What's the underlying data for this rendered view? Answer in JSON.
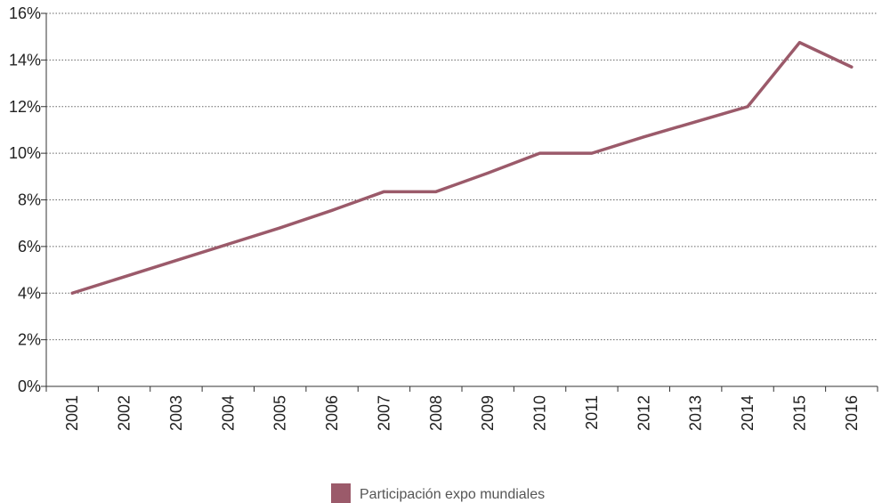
{
  "chart_data": {
    "type": "line",
    "x": [
      "2001",
      "2002",
      "2003",
      "2004",
      "2005",
      "2006",
      "2007",
      "2008",
      "2009",
      "2010",
      "2011",
      "2012",
      "2013",
      "2014",
      "2015",
      "2016"
    ],
    "series": [
      {
        "name": "Participación expo mundiales",
        "values": [
          4.0,
          4.7,
          5.4,
          6.1,
          6.8,
          7.55,
          8.35,
          8.35,
          9.15,
          10.0,
          10.0,
          10.7,
          11.35,
          12.0,
          14.75,
          13.7
        ],
        "color": "#9b5a6a"
      }
    ],
    "y_ticks": [
      "0%",
      "2%",
      "4%",
      "6%",
      "8%",
      "10%",
      "12%",
      "14%",
      "16%"
    ],
    "ylim": [
      0,
      16
    ],
    "grid": true,
    "gridline_style": "dotted",
    "legend_placement": "bottom-center",
    "title": "",
    "xlabel": "",
    "ylabel": ""
  }
}
